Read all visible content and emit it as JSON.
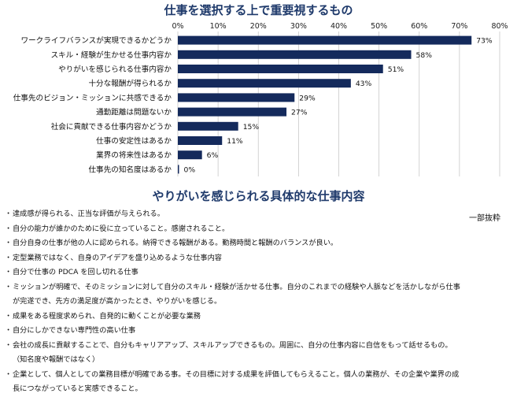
{
  "chart_title": "仕事を選択する上で重要視するもの",
  "list_title": "やりがいを感じられる具体的な仕事内容",
  "note": "一部抜粋",
  "chart_data": {
    "type": "bar",
    "orientation": "horizontal",
    "title": "仕事を選択する上で重要視するもの",
    "categories": [
      "ワークライフバランスが実現できるかどうか",
      "スキル・経験が生かせる仕事内容か",
      "やりがいを感じられる仕事内容か",
      "十分な報酬が得られるか",
      "仕事先のビジョン・ミッションに共感できるか",
      "通勤距離は問題ないか",
      "社会に貢献できる仕事内容かどうか",
      "仕事の安定性はあるか",
      "業界の将来性はあるか",
      "仕事先の知名度はあるか"
    ],
    "values": [
      73,
      58,
      51,
      43,
      29,
      27,
      15,
      11,
      6,
      0
    ],
    "value_labels": [
      "73%",
      "58%",
      "51%",
      "43%",
      "29%",
      "27%",
      "15%",
      "11%",
      "6%",
      "0%"
    ],
    "xlim": [
      0,
      80
    ],
    "xticks": [
      "0%",
      "10%",
      "20%",
      "30%",
      "40%",
      "50%",
      "60%",
      "70%",
      "80%"
    ],
    "bar_color": "#142a5c",
    "grid": true
  },
  "items": [
    {
      "lines": [
        "達成感が得られる、正当な評価が与えられる。"
      ]
    },
    {
      "lines": [
        "自分の能力が誰かのために役に立っていること。感謝されること。"
      ]
    },
    {
      "lines": [
        "自分自身の仕事が他の人に認められる。納得できる報酬がある。勤務時間と報酬のバランスが良い。"
      ]
    },
    {
      "lines": [
        "定型業務ではなく、自身のアイデアを盛り込めるような仕事内容"
      ]
    },
    {
      "lines": [
        "自分で仕事の PDCA を回し切れる仕事"
      ]
    },
    {
      "lines": [
        "ミッションが明確で、そのミッションに対して自分のスキル・経験が活かせる仕事。自分のこれまでの経験や人脈などを活かしながら仕事",
        "が完遂でき、先方の満足度が高かったとき、やりがいを感じる。"
      ]
    },
    {
      "lines": [
        "成果をある程度求められ、自発的に動くことが必要な業務"
      ]
    },
    {
      "lines": [
        "自分にしかできない専門性の高い仕事"
      ]
    },
    {
      "lines": [
        "会社の成長に貢献することで、自分もキャリアアップ、スキルアップできるもの。周囲に、自分の仕事内容に自信をもって話せるもの。",
        "（知名度や報酬ではなく）"
      ]
    },
    {
      "lines": [
        "企業として、個人としての業務目標が明確である事。その目標に対する成果を評価してもらえること。個人の業務が、その企業や業界の成",
        "長につながっていると実感できること。"
      ]
    }
  ]
}
